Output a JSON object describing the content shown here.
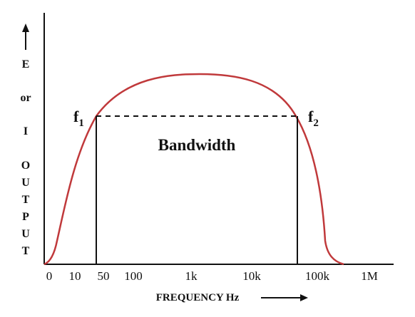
{
  "y_axis_letters": [
    "E",
    "or",
    "I",
    "O",
    "U",
    "T",
    "P",
    "U",
    "T"
  ],
  "x_axis_title": "FREQUENCY Hz",
  "x_ticks": [
    "0",
    "10",
    "50",
    "100",
    "1k",
    "10k",
    "100k",
    "1M"
  ],
  "cutoff_labels": {
    "f1": {
      "base": "f",
      "sub": "1"
    },
    "f2": {
      "base": "f",
      "sub": "2"
    }
  },
  "band_label": "Bandwidth",
  "colors": {
    "curve": "#c0393b",
    "axes": "#111111",
    "text": "#111111"
  },
  "icons": [
    "up-arrow-icon",
    "right-arrow-icon"
  ]
}
